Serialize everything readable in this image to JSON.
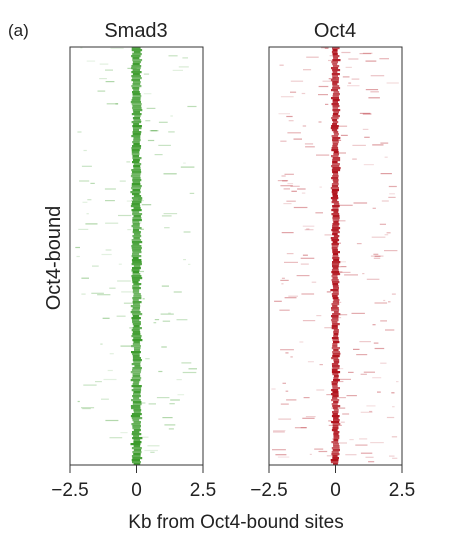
{
  "panel_label": "(a)",
  "chart_data": {
    "type": "heatmap",
    "row_group_label": "Oct4-bound",
    "xlabel": "Kb from Oct4-bound sites",
    "xlim": [
      -2.5,
      2.5
    ],
    "xticks": [
      -2.5,
      0,
      2.5
    ],
    "tick_labels": [
      "−2.5",
      "0",
      "2.5"
    ],
    "grid": false,
    "panels": [
      {
        "title": "Smad3",
        "color": "#3a9a2a",
        "peak_center_kb": 0,
        "peak_halfwidth_kb": 0.15,
        "background_density": "low"
      },
      {
        "title": "Oct4",
        "color": "#b0101a",
        "peak_center_kb": 0,
        "peak_halfwidth_kb": 0.12,
        "background_density": "medium"
      }
    ]
  }
}
